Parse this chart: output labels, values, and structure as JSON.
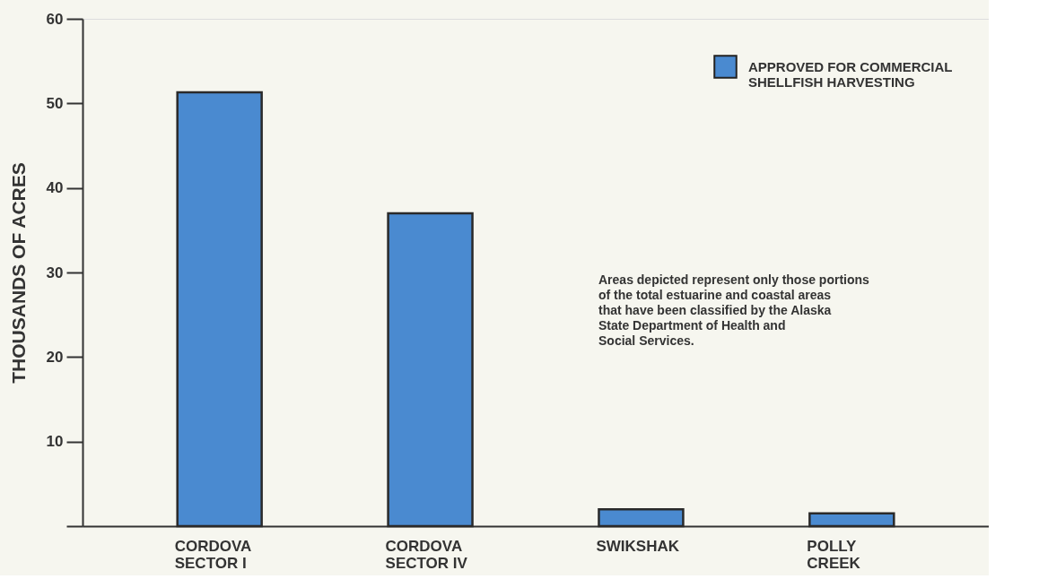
{
  "chart_data": {
    "type": "bar",
    "ylabel": "THOUSANDS OF ACRES",
    "categories": [
      "CORDOVA\nSECTOR I",
      "CORDOVA\nSECTOR IV",
      "SWIKSHAK",
      "POLLY\nCREEK"
    ],
    "series": [
      {
        "name": "APPROVED FOR COMMERCIAL\nSHELLFISH HARVESTING",
        "color": "#4a8ad0",
        "values": [
          51.3,
          37.0,
          2.0,
          1.5
        ]
      }
    ],
    "ylim": [
      0,
      60
    ],
    "yticks": [
      {
        "value": 0,
        "label": null
      },
      10,
      20,
      30,
      40,
      50,
      60
    ],
    "grid": false,
    "legend": "top right",
    "annotations": [
      "Areas depicted represent only those portions\nof the total estuarine and coastal areas\nthat have been classified by the Alaska\nState Department of Health and\nSocial Services."
    ]
  }
}
